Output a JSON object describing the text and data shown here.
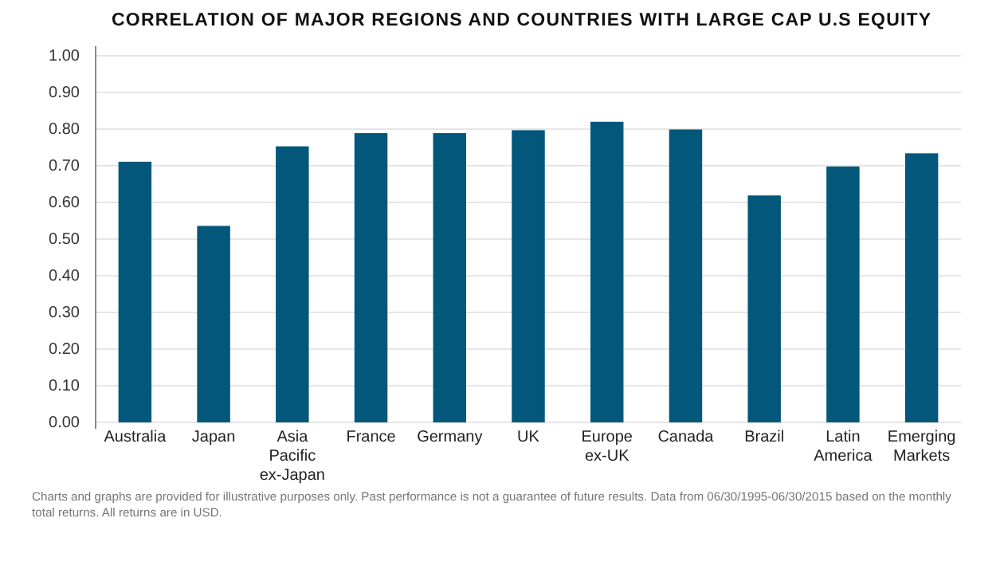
{
  "chart_data": {
    "type": "bar",
    "title": "CORRELATION OF MAJOR REGIONS AND COUNTRIES WITH LARGE CAP U.S EQUITY",
    "categories": [
      "Australia",
      "Japan",
      "Asia Pacific ex-Japan",
      "France",
      "Germany",
      "UK",
      "Europe ex-UK",
      "Canada",
      "Brazil",
      "Latin America",
      "Emerging Markets"
    ],
    "values": [
      0.711,
      0.536,
      0.753,
      0.789,
      0.789,
      0.797,
      0.82,
      0.799,
      0.619,
      0.698,
      0.734
    ],
    "color": "#02577a",
    "ylim": [
      0,
      1
    ],
    "yticks": [
      {
        "value": 0,
        "label": "0.00"
      },
      {
        "value": 0.1,
        "label": "0.10"
      },
      {
        "value": 0.2,
        "label": "0.20"
      },
      {
        "value": 0.3,
        "label": "0.30"
      },
      {
        "value": 0.4,
        "label": "0.40"
      },
      {
        "value": 0.5,
        "label": "0.50"
      },
      {
        "value": 0.6,
        "label": "0.60"
      },
      {
        "value": 0.7,
        "label": "0.70"
      },
      {
        "value": 0.8,
        "label": "0.80"
      },
      {
        "value": 0.9,
        "label": "0.90"
      },
      {
        "value": 1,
        "label": "1.00"
      }
    ],
    "grid": "y",
    "annotations": [
      "Charts and graphs are provided for illustrative purposes only. Past performance is not a guarantee of future results. Data from 06/30/1995-06/30/2015 based on the monthly total returns. All returns are in USD."
    ]
  }
}
